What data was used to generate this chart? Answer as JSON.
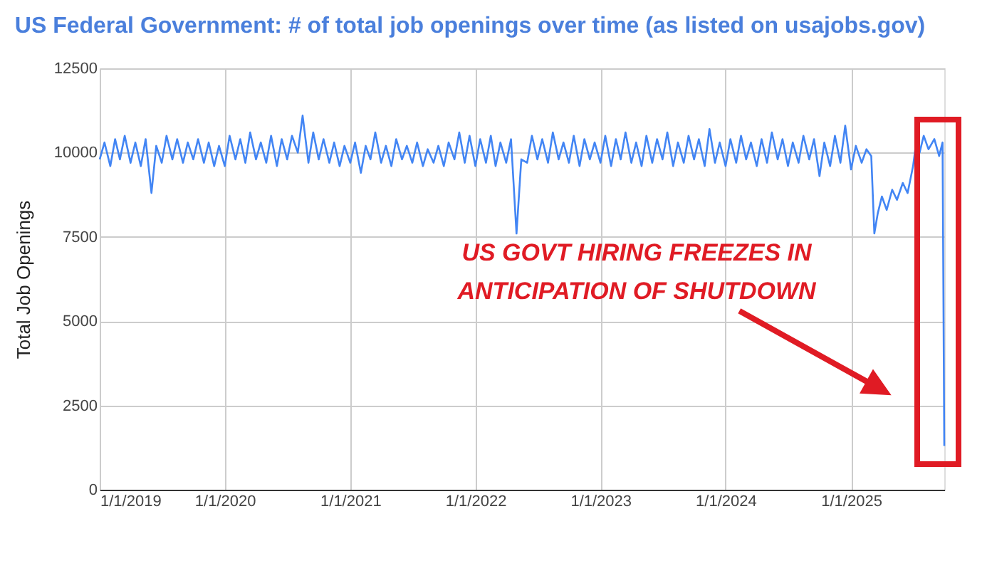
{
  "chart_data": {
    "type": "line",
    "title": "US Federal Government: # of total job openings over time (as listed on usajobs.gov)",
    "ylabel": "Total Job Openings",
    "annotations": [
      "US GOVT HIRING FREEZES IN\nANTICIPATION OF SHUTDOWN"
    ],
    "x": [
      "2019-01-01",
      "2019-01-15",
      "2019-02-01",
      "2019-02-15",
      "2019-03-01",
      "2019-03-15",
      "2019-04-01",
      "2019-04-15",
      "2019-05-01",
      "2019-05-15",
      "2019-06-01",
      "2019-06-15",
      "2019-07-01",
      "2019-07-15",
      "2019-08-01",
      "2019-08-15",
      "2019-09-01",
      "2019-09-15",
      "2019-10-01",
      "2019-10-15",
      "2019-11-01",
      "2019-11-15",
      "2019-12-01",
      "2019-12-15",
      "2020-01-01",
      "2020-01-15",
      "2020-02-01",
      "2020-02-15",
      "2020-03-01",
      "2020-03-15",
      "2020-04-01",
      "2020-04-15",
      "2020-05-01",
      "2020-05-15",
      "2020-06-01",
      "2020-06-15",
      "2020-07-01",
      "2020-07-15",
      "2020-08-01",
      "2020-08-15",
      "2020-09-01",
      "2020-09-15",
      "2020-10-01",
      "2020-10-15",
      "2020-11-01",
      "2020-11-15",
      "2020-12-01",
      "2020-12-15",
      "2021-01-01",
      "2021-01-15",
      "2021-02-01",
      "2021-02-15",
      "2021-03-01",
      "2021-03-15",
      "2021-04-01",
      "2021-04-15",
      "2021-05-01",
      "2021-05-15",
      "2021-06-01",
      "2021-06-15",
      "2021-07-01",
      "2021-07-15",
      "2021-08-01",
      "2021-08-15",
      "2021-09-01",
      "2021-09-15",
      "2021-10-01",
      "2021-10-15",
      "2021-11-01",
      "2021-11-15",
      "2021-12-01",
      "2021-12-15",
      "2022-01-01",
      "2022-01-15",
      "2022-02-01",
      "2022-02-15",
      "2022-03-01",
      "2022-03-15",
      "2022-04-01",
      "2022-04-15",
      "2022-05-01",
      "2022-05-15",
      "2022-06-01",
      "2022-06-15",
      "2022-07-01",
      "2022-07-15",
      "2022-08-01",
      "2022-08-15",
      "2022-09-01",
      "2022-09-15",
      "2022-10-01",
      "2022-10-15",
      "2022-11-01",
      "2022-11-15",
      "2022-12-01",
      "2022-12-15",
      "2023-01-01",
      "2023-01-15",
      "2023-02-01",
      "2023-02-15",
      "2023-03-01",
      "2023-03-15",
      "2023-04-01",
      "2023-04-15",
      "2023-05-01",
      "2023-05-15",
      "2023-06-01",
      "2023-06-15",
      "2023-07-01",
      "2023-07-15",
      "2023-08-01",
      "2023-08-15",
      "2023-09-01",
      "2023-09-15",
      "2023-10-01",
      "2023-10-15",
      "2023-11-01",
      "2023-11-15",
      "2023-12-01",
      "2023-12-15",
      "2024-01-01",
      "2024-01-15",
      "2024-02-01",
      "2024-02-15",
      "2024-03-01",
      "2024-03-15",
      "2024-04-01",
      "2024-04-15",
      "2024-05-01",
      "2024-05-15",
      "2024-06-01",
      "2024-06-15",
      "2024-07-01",
      "2024-07-15",
      "2024-08-01",
      "2024-08-15",
      "2024-09-01",
      "2024-09-15",
      "2024-10-01",
      "2024-10-15",
      "2024-11-01",
      "2024-11-15",
      "2024-12-01",
      "2024-12-15",
      "2025-01-01",
      "2025-01-15",
      "2025-02-01",
      "2025-02-15",
      "2025-03-01",
      "2025-03-10",
      "2025-03-20",
      "2025-04-01",
      "2025-04-15",
      "2025-05-01",
      "2025-05-15",
      "2025-06-01",
      "2025-06-15",
      "2025-07-01",
      "2025-07-10",
      "2025-07-20",
      "2025-08-01",
      "2025-08-15",
      "2025-09-01",
      "2025-09-15",
      "2025-09-25",
      "2025-09-30"
    ],
    "series": [
      {
        "color": "#4285f4",
        "values": [
          9800,
          10300,
          9600,
          10400,
          9800,
          10500,
          9700,
          10300,
          9600,
          10400,
          8800,
          10200,
          9700,
          10500,
          9800,
          10400,
          9700,
          10300,
          9800,
          10400,
          9700,
          10300,
          9600,
          10200,
          9600,
          10500,
          9800,
          10400,
          9700,
          10600,
          9800,
          10300,
          9700,
          10500,
          9600,
          10400,
          9800,
          10500,
          10000,
          11100,
          9700,
          10600,
          9800,
          10400,
          9700,
          10300,
          9600,
          10200,
          9700,
          10300,
          9400,
          10200,
          9800,
          10600,
          9700,
          10200,
          9600,
          10400,
          9800,
          10200,
          9700,
          10300,
          9600,
          10100,
          9700,
          10200,
          9600,
          10300,
          9800,
          10600,
          9700,
          10500,
          9600,
          10400,
          9700,
          10500,
          9600,
          10300,
          9700,
          10400,
          7600,
          9800,
          9700,
          10500,
          9800,
          10400,
          9700,
          10600,
          9800,
          10300,
          9700,
          10500,
          9600,
          10400,
          9800,
          10300,
          9700,
          10500,
          9600,
          10400,
          9800,
          10600,
          9700,
          10300,
          9600,
          10500,
          9700,
          10400,
          9800,
          10600,
          9600,
          10300,
          9700,
          10500,
          9800,
          10400,
          9600,
          10700,
          9700,
          10300,
          9600,
          10400,
          9700,
          10500,
          9800,
          10300,
          9600,
          10400,
          9700,
          10600,
          9800,
          10400,
          9600,
          10300,
          9700,
          10500,
          9800,
          10400,
          9300,
          10300,
          9600,
          10500,
          9700,
          10800,
          9500,
          10200,
          9700,
          10100,
          9900,
          7600,
          8200,
          8700,
          8300,
          8900,
          8600,
          9100,
          8800,
          9600,
          10300,
          10000,
          10500,
          10100,
          10400,
          9900,
          10300,
          1300
        ]
      }
    ],
    "xlim": [
      "2019-01-01",
      "2025-09-30"
    ],
    "xticks": [
      {
        "value": "2019-01-01",
        "label": "1/1/2019"
      },
      {
        "value": "2020-01-01",
        "label": "1/1/2020"
      },
      {
        "value": "2021-01-01",
        "label": "1/1/2021"
      },
      {
        "value": "2022-01-01",
        "label": "1/1/2022"
      },
      {
        "value": "2023-01-01",
        "label": "1/1/2023"
      },
      {
        "value": "2024-01-01",
        "label": "1/1/2024"
      },
      {
        "value": "2025-01-01",
        "label": "1/1/2025"
      }
    ],
    "ylim": [
      0,
      12500
    ],
    "yticks": [
      0,
      2500,
      5000,
      7500,
      10000,
      12500
    ],
    "grid": true,
    "line_style": "solid",
    "marker": "none"
  }
}
